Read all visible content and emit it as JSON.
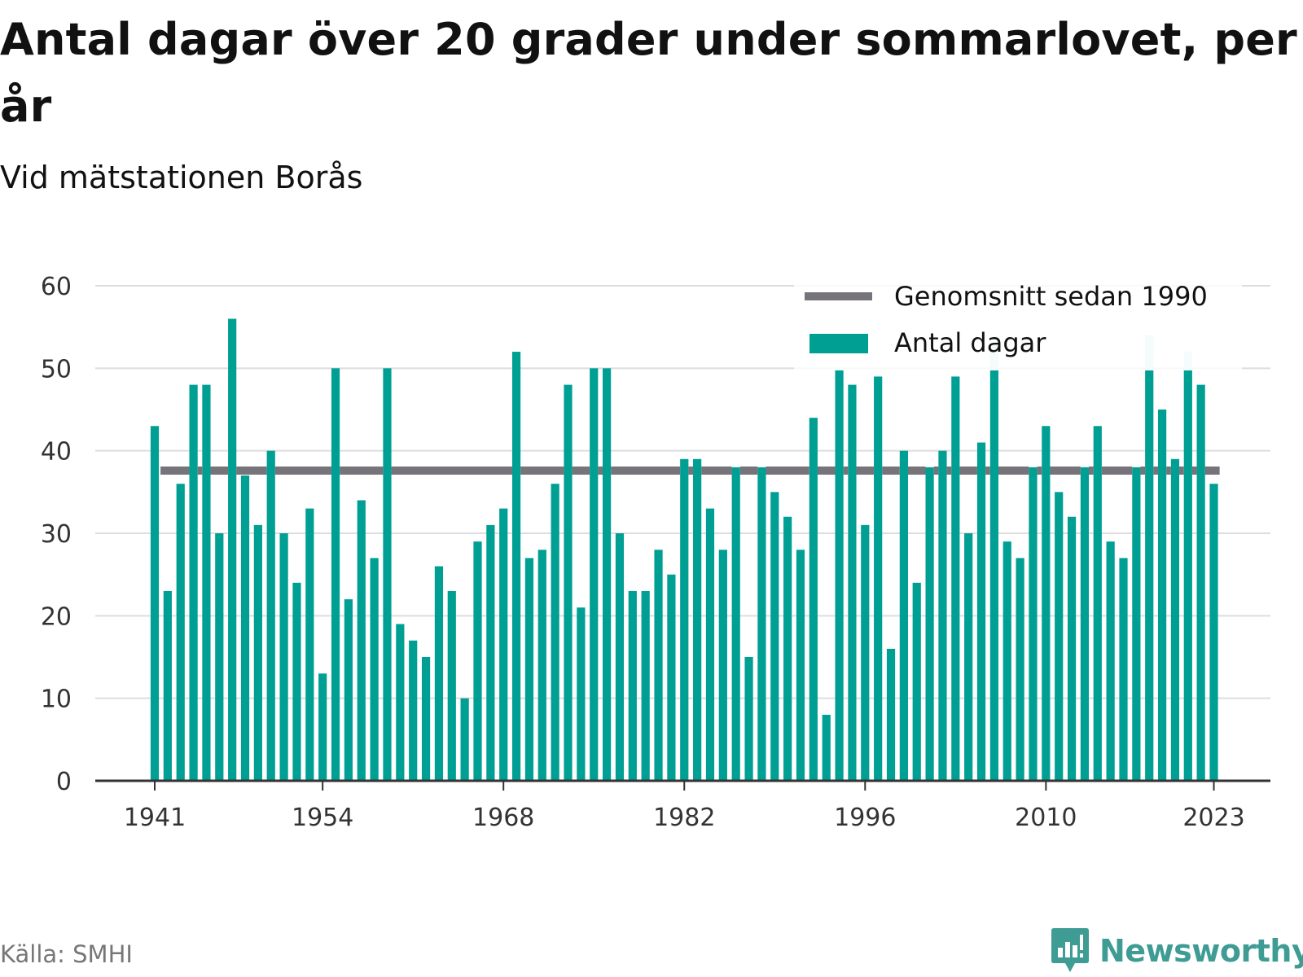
{
  "header": {
    "title": "Antal dagar över 20 grader under sommarlovet, per år",
    "subtitle": "Vid mätstationen Borås"
  },
  "footer": {
    "source": "Källa: SMHI",
    "brand": "Newsworthy"
  },
  "colors": {
    "bar": "#009f94",
    "bar_faded": "#bfe6e3",
    "average_line": "#76737a",
    "grid": "#dddddd",
    "axis": "#333333"
  },
  "chart_data": {
    "type": "bar",
    "title": "Antal dagar över 20 grader under sommarlovet, per år",
    "subtitle": "Vid mätstationen Borås",
    "xlabel": "",
    "ylabel": "",
    "ylim": [
      0,
      60
    ],
    "yticks": [
      0,
      10,
      20,
      30,
      40,
      50,
      60
    ],
    "xtick_labels": [
      "1941",
      "1954",
      "1968",
      "1982",
      "1996",
      "2010",
      "2023"
    ],
    "grid": true,
    "legend_position": "top-right",
    "categories": [
      1941,
      1942,
      1943,
      1944,
      1945,
      1946,
      1947,
      1948,
      1949,
      1950,
      1951,
      1952,
      1953,
      1954,
      1955,
      1956,
      1957,
      1958,
      1959,
      1960,
      1961,
      1962,
      1963,
      1964,
      1965,
      1966,
      1967,
      1968,
      1969,
      1970,
      1971,
      1972,
      1973,
      1974,
      1975,
      1976,
      1977,
      1978,
      1979,
      1980,
      1981,
      1982,
      1983,
      1984,
      1985,
      1986,
      1987,
      1988,
      1989,
      1990,
      1991,
      1992,
      1993,
      1994,
      1995,
      1996,
      1997,
      1998,
      1999,
      2000,
      2001,
      2002,
      2003,
      2004,
      2005,
      2006,
      2007,
      2008,
      2009,
      2010,
      2011,
      2012,
      2013,
      2014,
      2015,
      2016,
      2017,
      2018,
      2019,
      2020,
      2021,
      2022,
      2023
    ],
    "series": [
      {
        "name": "Antal dagar",
        "type": "bar",
        "values": [
          43,
          23,
          36,
          48,
          48,
          30,
          56,
          37,
          31,
          40,
          30,
          24,
          33,
          13,
          50,
          22,
          34,
          27,
          50,
          19,
          17,
          15,
          26,
          23,
          10,
          29,
          31,
          33,
          52,
          27,
          28,
          36,
          48,
          21,
          50,
          50,
          30,
          23,
          23,
          28,
          25,
          39,
          39,
          33,
          28,
          38,
          15,
          38,
          35,
          32,
          28,
          44,
          8,
          50,
          48,
          31,
          49,
          16,
          40,
          24,
          38,
          40,
          49,
          30,
          41,
          53,
          29,
          27,
          38,
          43,
          35,
          32,
          38,
          43,
          29,
          27,
          38,
          54,
          45,
          39,
          52,
          48,
          36
        ]
      },
      {
        "name": "Genomsnitt sedan 1990",
        "type": "line",
        "value": 37.6
      }
    ]
  }
}
